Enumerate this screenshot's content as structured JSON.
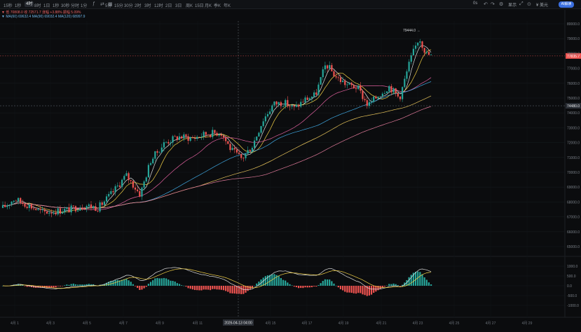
{
  "toolbar": {
    "timeframes": [
      "15秒",
      "1秒",
      "4时",
      "8时",
      "1日",
      "1秒",
      "30秒",
      "分时",
      "1分",
      "5分",
      "15分",
      "30分",
      "2时",
      "3时",
      "12时",
      "2日",
      "3日",
      "周K",
      "15日",
      "月K",
      "季K",
      "年K"
    ],
    "active_timeframe": "4时",
    "right_label_0": "0s",
    "right_label_1": "显示",
    "right_label_2": "¥ 美元",
    "ai_label": "AI解读"
  },
  "legend": {
    "line1": "▼ 低 70808.0  收 72571.7  涨幅 +3.88%  振幅 5.09%",
    "line2": "▼ MA(60) 69632.4  MA(90) 69032.4  MA(120) 68997.9"
  },
  "price_axis": {
    "ticks": [
      "80000.0",
      "79000.0",
      "78000.0",
      "77000.0",
      "76000.0",
      "75000.0",
      "74000.0",
      "73000.0",
      "72000.0",
      "71000.0",
      "70000.0",
      "69000.0",
      "68000.0",
      "67000.0",
      "66000.0",
      "65000.0"
    ],
    "current_price": "77835.7",
    "crosshair_price": "74480.0",
    "high_annotation": "79444.0"
  },
  "macd_axis": {
    "ticks": [
      "1000.0",
      "500.0",
      "0.0",
      "-500.0",
      "-1000.0"
    ]
  },
  "time_axis": {
    "ticks": [
      "4月 1",
      "4月 3",
      "4月 5",
      "4月 7",
      "4月 9",
      "4月 11",
      "4月 15",
      "4月 17",
      "4月 19",
      "4月 21",
      "4月 23",
      "4月 25",
      "4月 27",
      "4月 29"
    ],
    "crosshair_label": "2026-04-13 04:00"
  },
  "colors": {
    "up": "#26a69a",
    "down": "#ef5350",
    "ma_white": "#e0e0e0",
    "ma_yellow": "#f2d046",
    "ma_pink": "#e0609e",
    "ma_blue": "#3fa7e0",
    "ma_yellow2": "#e6c35a",
    "ma_pink2": "#e07a9a"
  }
}
